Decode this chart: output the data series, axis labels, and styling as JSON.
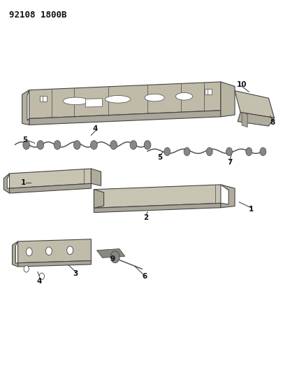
{
  "title": "92108 1800B",
  "background_color": "#ffffff",
  "fig_width": 4.06,
  "fig_height": 5.33,
  "dpi": 100,
  "part_fill": "#c8c4b0",
  "part_edge": "#444444",
  "part_fill2": "#b0ac9c",
  "part_fill3": "#a8a598",
  "wire_color": "#555555",
  "connector_fill": "#888880",
  "line_color": "#333333"
}
